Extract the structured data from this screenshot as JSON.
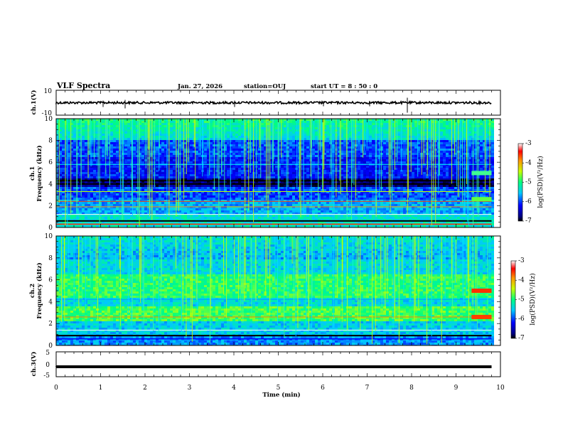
{
  "header": {
    "title": "VLF Spectra",
    "date": "Jan. 27, 2026",
    "station": "station=OUJ",
    "start": "start  UT =   8 : 50 : 0"
  },
  "chart_data": {
    "type": "heatmap",
    "x_axis": {
      "label": "Time (min)",
      "range": [
        0,
        10
      ],
      "ticks": [
        "0",
        "1",
        "2",
        "3",
        "4",
        "5",
        "6",
        "7",
        "8",
        "9",
        "10"
      ]
    },
    "panels": [
      {
        "name": "ch1-waveform",
        "ylabel": "ch.1(V)",
        "ylim": [
          -10,
          10
        ],
        "yticks": [
          "10",
          "-10"
        ],
        "trace_level": 0,
        "data_end_min": 9.8
      },
      {
        "name": "ch1-spectrogram",
        "ylabel_line1": "ch.1",
        "ylabel_line2": "Frequency (kHz)",
        "ylim": [
          0,
          10
        ],
        "yticks": [
          "0",
          "2",
          "4",
          "6",
          "8",
          "10"
        ],
        "colorbar": {
          "label": "log(PSD)(V²/Hz)",
          "range": [
            -7,
            -3
          ],
          "ticks": [
            "-3",
            "-4",
            "-5",
            "-6",
            "-7"
          ]
        },
        "data_end_min": 9.8
      },
      {
        "name": "ch2-spectrogram",
        "ylabel_line1": "ch.2",
        "ylabel_line2": "Frequency (kHz)",
        "ylim": [
          0,
          10
        ],
        "yticks": [
          "0",
          "2",
          "4",
          "6",
          "8",
          "10"
        ],
        "colorbar": {
          "label": "log(PSD)(V²/Hz)",
          "range": [
            -7,
            -3
          ],
          "ticks": [
            "-3",
            "-4",
            "-5",
            "-6",
            "-7"
          ]
        },
        "data_end_min": 9.8
      },
      {
        "name": "ch3-waveform",
        "ylabel": "ch.3(V)",
        "ylim": [
          -5,
          5
        ],
        "yticks": [
          "5",
          "0",
          "-5"
        ],
        "trace_level": -1,
        "data_end_min": 9.8
      }
    ]
  },
  "colors": {
    "axis": "#000000",
    "trace": "#000000",
    "background": "#ffffff"
  }
}
